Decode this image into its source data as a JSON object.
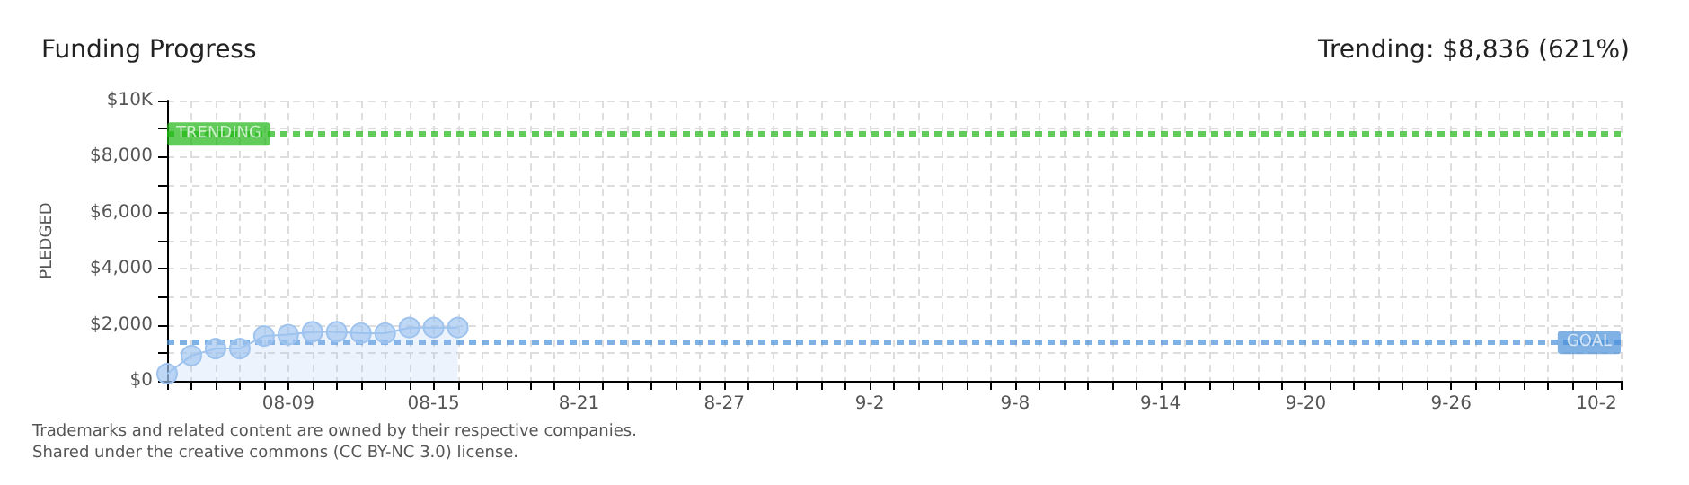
{
  "chart_data": {
    "type": "area",
    "title": "Funding Progress",
    "subtitle": "Trending: $8,836 (621%)",
    "ylabel": "PLEDGED",
    "x": [
      "--08-04",
      "--08-05",
      "--08-06",
      "--08-07",
      "--08-08",
      "--08-09",
      "--08-10",
      "--08-11",
      "--08-12",
      "--08-13",
      "--08-14",
      "--08-15",
      "--08-16"
    ],
    "series": [
      {
        "color": "#9ec3ee",
        "values": [
          250,
          900,
          1150,
          1150,
          1600,
          1650,
          1750,
          1750,
          1700,
          1700,
          1900,
          1900,
          1900
        ]
      }
    ],
    "xlim": [
      "--08-04",
      "--10-03"
    ],
    "xticks": [
      {
        "value": "--08-04",
        "label": null
      },
      {
        "value": "--08-05",
        "label": null
      },
      {
        "value": "--08-06",
        "label": null
      },
      {
        "value": "--08-07",
        "label": null
      },
      {
        "value": "--08-08",
        "label": null
      },
      {
        "value": "--08-09",
        "label": "08-09"
      },
      {
        "value": "--08-10",
        "label": null
      },
      {
        "value": "--08-11",
        "label": null
      },
      {
        "value": "--08-12",
        "label": null
      },
      {
        "value": "--08-13",
        "label": null
      },
      {
        "value": "--08-14",
        "label": null
      },
      {
        "value": "--08-15",
        "label": "08-15"
      },
      {
        "value": "--08-16",
        "label": null
      },
      {
        "value": "--08-17",
        "label": null
      },
      {
        "value": "--08-18",
        "label": null
      },
      {
        "value": "--08-19",
        "label": null
      },
      {
        "value": "--08-20",
        "label": null
      },
      {
        "value": "--08-21",
        "label": "8-21"
      },
      {
        "value": "--08-22",
        "label": null
      },
      {
        "value": "--08-23",
        "label": null
      },
      {
        "value": "--08-24",
        "label": null
      },
      {
        "value": "--08-25",
        "label": null
      },
      {
        "value": "--08-26",
        "label": null
      },
      {
        "value": "--08-27",
        "label": "8-27"
      },
      {
        "value": "--08-28",
        "label": null
      },
      {
        "value": "--08-29",
        "label": null
      },
      {
        "value": "--08-30",
        "label": null
      },
      {
        "value": "--08-31",
        "label": null
      },
      {
        "value": "--09-01",
        "label": null
      },
      {
        "value": "--09-02",
        "label": "9-2"
      },
      {
        "value": "--09-03",
        "label": null
      },
      {
        "value": "--09-04",
        "label": null
      },
      {
        "value": "--09-05",
        "label": null
      },
      {
        "value": "--09-06",
        "label": null
      },
      {
        "value": "--09-07",
        "label": null
      },
      {
        "value": "--09-08",
        "label": "9-8"
      },
      {
        "value": "--09-09",
        "label": null
      },
      {
        "value": "--09-10",
        "label": null
      },
      {
        "value": "--09-11",
        "label": null
      },
      {
        "value": "--09-12",
        "label": null
      },
      {
        "value": "--09-13",
        "label": null
      },
      {
        "value": "--09-14",
        "label": "9-14"
      },
      {
        "value": "--09-15",
        "label": null
      },
      {
        "value": "--09-16",
        "label": null
      },
      {
        "value": "--09-17",
        "label": null
      },
      {
        "value": "--09-18",
        "label": null
      },
      {
        "value": "--09-19",
        "label": null
      },
      {
        "value": "--09-20",
        "label": "9-20"
      },
      {
        "value": "--09-21",
        "label": null
      },
      {
        "value": "--09-22",
        "label": null
      },
      {
        "value": "--09-23",
        "label": null
      },
      {
        "value": "--09-24",
        "label": null
      },
      {
        "value": "--09-25",
        "label": null
      },
      {
        "value": "--09-26",
        "label": "9-26"
      },
      {
        "value": "--09-27",
        "label": null
      },
      {
        "value": "--09-28",
        "label": null
      },
      {
        "value": "--09-29",
        "label": null
      },
      {
        "value": "--09-30",
        "label": null
      },
      {
        "value": "--10-01",
        "label": null
      },
      {
        "value": "--10-02",
        "label": "10-2"
      },
      {
        "value": "--10-03",
        "label": null
      }
    ],
    "ylim": [
      0,
      10000
    ],
    "yticks": [
      {
        "value": 0,
        "label": "$0"
      },
      {
        "value": 1000,
        "label": null
      },
      {
        "value": 2000,
        "label": "$2,000"
      },
      {
        "value": 3000,
        "label": null
      },
      {
        "value": 4000,
        "label": "$4,000"
      },
      {
        "value": 5000,
        "label": null
      },
      {
        "value": 6000,
        "label": "$6,000"
      },
      {
        "value": 7000,
        "label": null
      },
      {
        "value": 8000,
        "label": "$8,000"
      },
      {
        "value": 9000,
        "label": null
      },
      {
        "value": 10000,
        "label": "$10K"
      }
    ],
    "ref_lines": [
      {
        "axis": "y",
        "value": 8836,
        "label": "TRENDING",
        "color": "#1fb714",
        "line_style": "dashed"
      },
      {
        "axis": "y",
        "value": 1400,
        "label": "GOAL",
        "color": "#4a90d9",
        "line_style": "dashed"
      }
    ],
    "grid": true,
    "marker": "circle",
    "annotations": [
      "Trademarks and related content are owned by their respective companies.",
      "Shared under the creative commons (CC BY-NC 3.0) license."
    ]
  }
}
